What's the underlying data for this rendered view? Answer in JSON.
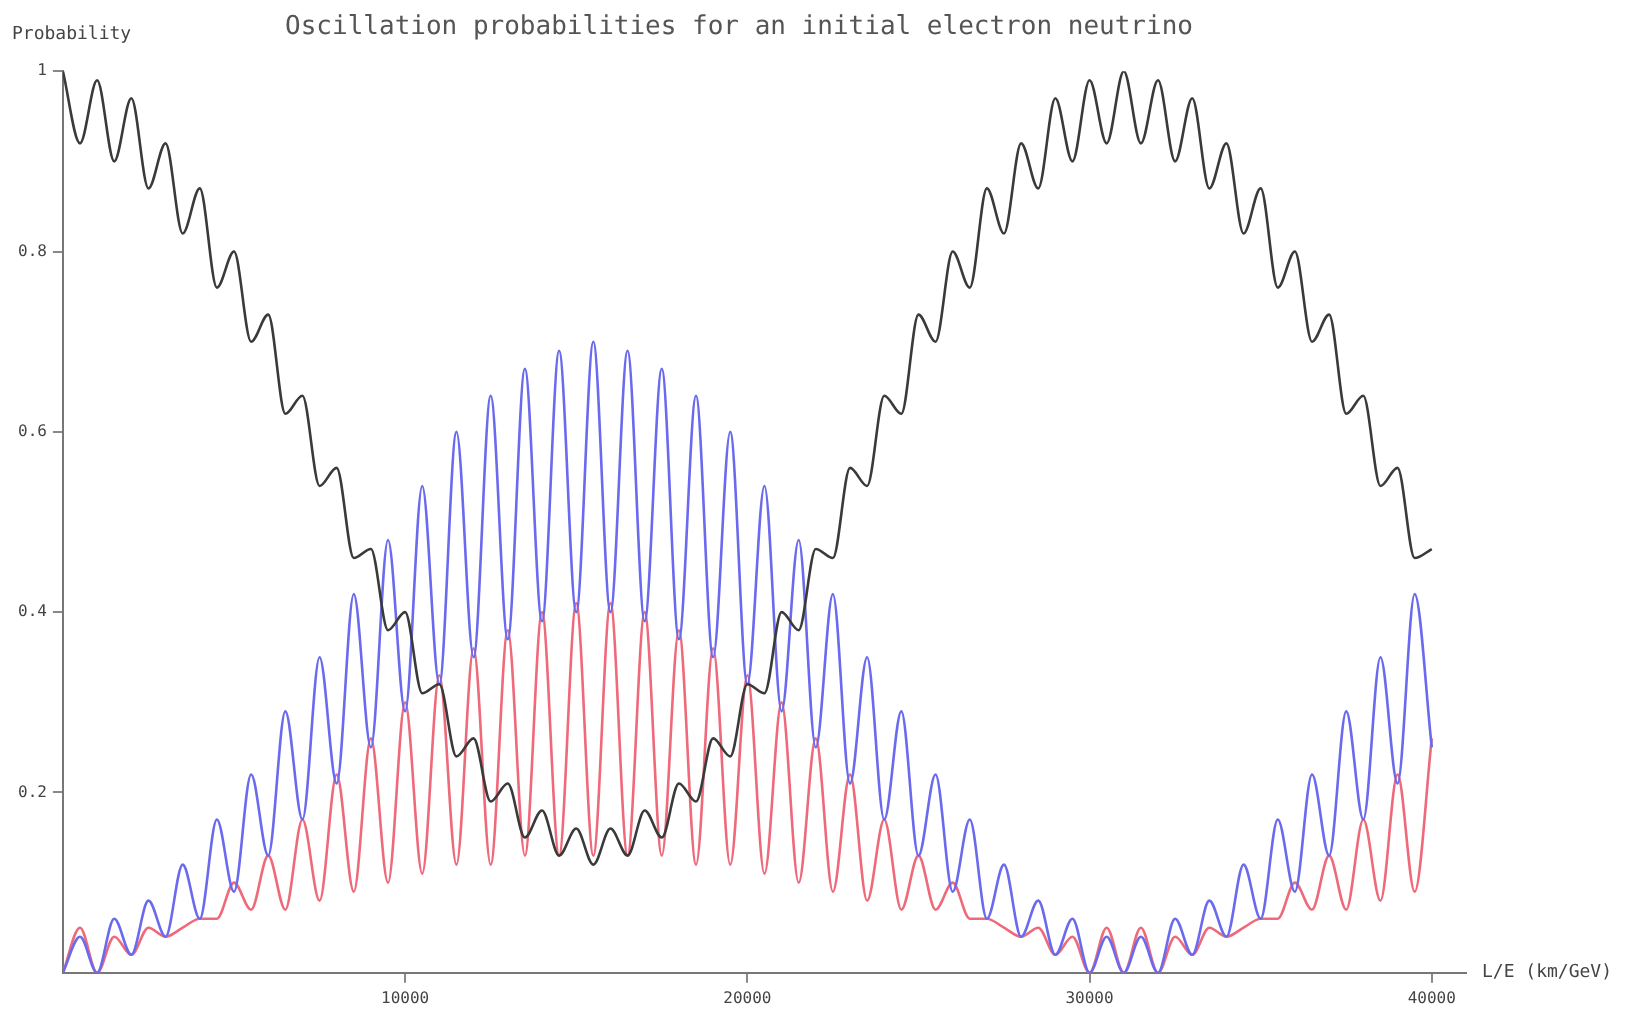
{
  "chart_data": {
    "type": "line",
    "title": "Oscillation probabilities for an initial electron neutrino",
    "xlabel": "L/E (km/GeV)",
    "ylabel": "Probability",
    "x": [
      0,
      500,
      1000,
      1500,
      2000,
      2500,
      3000,
      3500,
      4000,
      4500,
      5000,
      5500,
      6000,
      6500,
      7000,
      7500,
      8000,
      8500,
      9000,
      9500,
      10000,
      10500,
      11000,
      11500,
      12000,
      12500,
      13000,
      13500,
      14000,
      14500,
      15000,
      15500,
      16000,
      16500,
      17000,
      17500,
      18000,
      18500,
      19000,
      19500,
      20000,
      20500,
      21000,
      21500,
      22000,
      22500,
      23000,
      23500,
      24000,
      24500,
      25000,
      25500,
      26000,
      26500,
      27000,
      27500,
      28000,
      28500,
      29000,
      29500,
      30000,
      30500,
      31000,
      31500,
      32000,
      32500,
      33000,
      33500,
      34000,
      34500,
      35000,
      35500,
      36000,
      36500,
      37000,
      37500,
      38000,
      38500,
      39000,
      39500,
      40000
    ],
    "series": [
      {
        "color": "#3a3a3a",
        "values": [
          1,
          0.92,
          0.99,
          0.9,
          0.97,
          0.87,
          0.92,
          0.82,
          0.87,
          0.76,
          0.8,
          0.7,
          0.73,
          0.62,
          0.64,
          0.54,
          0.56,
          0.46,
          0.47,
          0.38,
          0.4,
          0.31,
          0.32,
          0.24,
          0.26,
          0.19,
          0.21,
          0.15,
          0.18,
          0.13,
          0.16,
          0.12,
          0.16,
          0.13,
          0.18,
          0.15,
          0.21,
          0.19,
          0.26,
          0.24,
          0.32,
          0.31,
          0.4,
          0.38,
          0.47,
          0.46,
          0.56,
          0.54,
          0.64,
          0.62,
          0.73,
          0.7,
          0.8,
          0.76,
          0.87,
          0.82,
          0.92,
          0.87,
          0.97,
          0.9,
          0.99,
          0.92,
          1,
          0.92,
          0.99,
          0.9,
          0.97,
          0.87,
          0.92,
          0.82,
          0.87,
          0.76,
          0.8,
          0.7,
          0.73,
          0.62,
          0.64,
          0.54,
          0.56,
          0.46,
          0.47
        ]
      },
      {
        "color": "#6a6aee",
        "values": [
          0,
          0.04,
          0,
          0.06,
          0.02,
          0.08,
          0.04,
          0.12,
          0.06,
          0.17,
          0.09,
          0.22,
          0.13,
          0.29,
          0.17,
          0.35,
          0.21,
          0.42,
          0.25,
          0.48,
          0.29,
          0.54,
          0.32,
          0.6,
          0.35,
          0.64,
          0.37,
          0.67,
          0.39,
          0.69,
          0.4,
          0.7,
          0.4,
          0.69,
          0.39,
          0.67,
          0.37,
          0.64,
          0.35,
          0.6,
          0.32,
          0.54,
          0.29,
          0.48,
          0.25,
          0.42,
          0.21,
          0.35,
          0.17,
          0.29,
          0.13,
          0.22,
          0.09,
          0.17,
          0.06,
          0.12,
          0.04,
          0.08,
          0.02,
          0.06,
          0,
          0.04,
          0,
          0.04,
          0,
          0.06,
          0.02,
          0.08,
          0.04,
          0.12,
          0.06,
          0.17,
          0.09,
          0.22,
          0.13,
          0.29,
          0.17,
          0.35,
          0.21,
          0.42,
          0.25
        ]
      },
      {
        "color": "#ee6a7a",
        "values": [
          0,
          0.05,
          0,
          0.04,
          0.02,
          0.05,
          0.04,
          0.05,
          0.06,
          0.06,
          0.1,
          0.07,
          0.13,
          0.07,
          0.17,
          0.08,
          0.22,
          0.09,
          0.26,
          0.1,
          0.3,
          0.11,
          0.33,
          0.12,
          0.36,
          0.12,
          0.38,
          0.13,
          0.4,
          0.13,
          0.41,
          0.13,
          0.41,
          0.13,
          0.4,
          0.13,
          0.38,
          0.12,
          0.36,
          0.12,
          0.33,
          0.11,
          0.3,
          0.1,
          0.26,
          0.09,
          0.22,
          0.08,
          0.17,
          0.07,
          0.13,
          0.07,
          0.1,
          0.06,
          0.06,
          0.05,
          0.04,
          0.05,
          0.02,
          0.04,
          0,
          0.05,
          0,
          0.05,
          0,
          0.04,
          0.02,
          0.05,
          0.04,
          0.05,
          0.06,
          0.06,
          0.1,
          0.07,
          0.13,
          0.07,
          0.17,
          0.08,
          0.22,
          0.09,
          0.26
        ]
      }
    ],
    "xlim": [
      0,
      41000
    ],
    "ylim": [
      0,
      1
    ],
    "xticks": [
      10000,
      20000,
      30000,
      40000
    ],
    "yticks": [
      0.2,
      0.4,
      0.6,
      0.8,
      1
    ],
    "line_style": "solid"
  }
}
